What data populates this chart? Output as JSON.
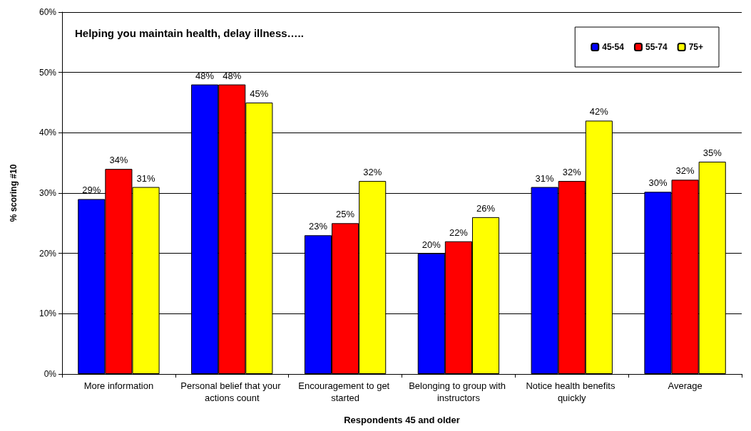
{
  "chart_data": {
    "type": "bar",
    "title": "Helping you maintain health, delay illness…..",
    "xlabel": "Respondents 45 and older",
    "ylabel": "% scoring #10",
    "categories": [
      "More information",
      "Personal belief that your actions count",
      "Encouragement to get started",
      "Belonging to group with instructors",
      "Notice health benefits quickly",
      "Average"
    ],
    "series": [
      {
        "name": "45-54",
        "color": "#0000ff",
        "values": [
          29,
          48,
          23,
          20,
          31,
          30.2
        ],
        "value_labels": [
          "29%",
          "48%",
          "23%",
          "20%",
          "31%",
          "30%"
        ]
      },
      {
        "name": "55-74",
        "color": "#ff0000",
        "values": [
          34,
          48,
          25,
          22,
          32,
          32.2
        ],
        "value_labels": [
          "34%",
          "48%",
          "25%",
          "22%",
          "32%",
          "32%"
        ]
      },
      {
        "name": "75+",
        "color": "#ffff00",
        "values": [
          31,
          45,
          32,
          26,
          42,
          35.2
        ],
        "value_labels": [
          "31%",
          "45%",
          "32%",
          "26%",
          "42%",
          "35%"
        ]
      }
    ],
    "ylim": [
      0,
      60
    ],
    "yticks": [
      {
        "value": 0,
        "label": "0%"
      },
      {
        "value": 10,
        "label": "10%"
      },
      {
        "value": 20,
        "label": "20%"
      },
      {
        "value": 30,
        "label": "30%"
      },
      {
        "value": 40,
        "label": "40%"
      },
      {
        "value": 50,
        "label": "50%"
      },
      {
        "value": 60,
        "label": "60%"
      }
    ],
    "grid": "y",
    "legend": "top right"
  }
}
